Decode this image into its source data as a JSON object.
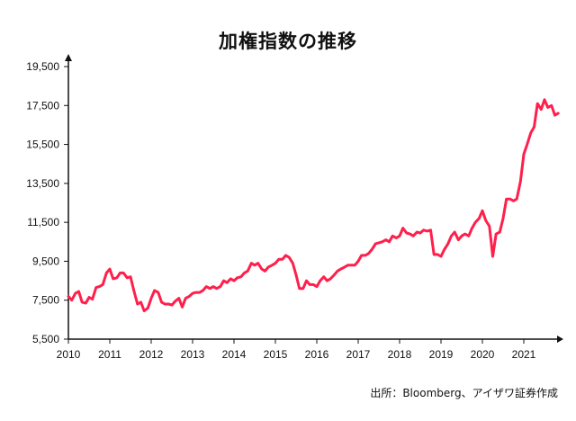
{
  "chart_data": {
    "type": "line",
    "title": "加権指数の推移",
    "source": "出所：Bloomberg、アイザワ証券作成",
    "xlabel": "",
    "ylabel": "",
    "x_ticks": [
      "2010",
      "2011",
      "2012",
      "2013",
      "2014",
      "2015",
      "2016",
      "2017",
      "2018",
      "2019",
      "2020",
      "2021"
    ],
    "y_ticks": [
      "5,500",
      "7,500",
      "9,500",
      "11,500",
      "13,500",
      "15,500",
      "17,500",
      "19,500"
    ],
    "ylim": [
      5500,
      19500
    ],
    "xlim": [
      2010.0,
      2021.83
    ],
    "grid": false,
    "colors": {
      "line": "#ff1f4b",
      "axis": "#111111"
    },
    "series": [
      {
        "name": "",
        "points": [
          [
            2010.0,
            7700
          ],
          [
            2010.08,
            7500
          ],
          [
            2010.17,
            7850
          ],
          [
            2010.25,
            7950
          ],
          [
            2010.33,
            7400
          ],
          [
            2010.42,
            7350
          ],
          [
            2010.5,
            7650
          ],
          [
            2010.58,
            7550
          ],
          [
            2010.67,
            8150
          ],
          [
            2010.75,
            8200
          ],
          [
            2010.83,
            8300
          ],
          [
            2010.92,
            8900
          ],
          [
            2011.0,
            9100
          ],
          [
            2011.08,
            8600
          ],
          [
            2011.17,
            8650
          ],
          [
            2011.25,
            8900
          ],
          [
            2011.33,
            8900
          ],
          [
            2011.42,
            8650
          ],
          [
            2011.5,
            8700
          ],
          [
            2011.58,
            8000
          ],
          [
            2011.67,
            7300
          ],
          [
            2011.75,
            7400
          ],
          [
            2011.83,
            6950
          ],
          [
            2011.92,
            7100
          ],
          [
            2012.0,
            7600
          ],
          [
            2012.08,
            8000
          ],
          [
            2012.17,
            7900
          ],
          [
            2012.25,
            7400
          ],
          [
            2012.33,
            7300
          ],
          [
            2012.42,
            7300
          ],
          [
            2012.5,
            7250
          ],
          [
            2012.58,
            7450
          ],
          [
            2012.67,
            7600
          ],
          [
            2012.75,
            7150
          ],
          [
            2012.83,
            7600
          ],
          [
            2012.92,
            7700
          ],
          [
            2013.0,
            7850
          ],
          [
            2013.08,
            7900
          ],
          [
            2013.17,
            7900
          ],
          [
            2013.25,
            8000
          ],
          [
            2013.33,
            8200
          ],
          [
            2013.42,
            8100
          ],
          [
            2013.5,
            8200
          ],
          [
            2013.58,
            8100
          ],
          [
            2013.67,
            8200
          ],
          [
            2013.75,
            8500
          ],
          [
            2013.83,
            8400
          ],
          [
            2013.92,
            8600
          ],
          [
            2014.0,
            8500
          ],
          [
            2014.08,
            8650
          ],
          [
            2014.17,
            8700
          ],
          [
            2014.25,
            8900
          ],
          [
            2014.33,
            9000
          ],
          [
            2014.42,
            9400
          ],
          [
            2014.5,
            9300
          ],
          [
            2014.58,
            9400
          ],
          [
            2014.67,
            9100
          ],
          [
            2014.75,
            9000
          ],
          [
            2014.83,
            9200
          ],
          [
            2014.92,
            9300
          ],
          [
            2015.0,
            9400
          ],
          [
            2015.08,
            9600
          ],
          [
            2015.17,
            9600
          ],
          [
            2015.25,
            9800
          ],
          [
            2015.33,
            9700
          ],
          [
            2015.42,
            9400
          ],
          [
            2015.5,
            8800
          ],
          [
            2015.58,
            8100
          ],
          [
            2015.67,
            8100
          ],
          [
            2015.75,
            8500
          ],
          [
            2015.83,
            8300
          ],
          [
            2015.92,
            8300
          ],
          [
            2016.0,
            8200
          ],
          [
            2016.08,
            8500
          ],
          [
            2016.17,
            8700
          ],
          [
            2016.25,
            8500
          ],
          [
            2016.33,
            8600
          ],
          [
            2016.42,
            8800
          ],
          [
            2016.5,
            9000
          ],
          [
            2016.58,
            9100
          ],
          [
            2016.67,
            9200
          ],
          [
            2016.75,
            9300
          ],
          [
            2016.83,
            9300
          ],
          [
            2016.92,
            9300
          ],
          [
            2017.0,
            9500
          ],
          [
            2017.08,
            9800
          ],
          [
            2017.17,
            9800
          ],
          [
            2017.25,
            9900
          ],
          [
            2017.33,
            10100
          ],
          [
            2017.42,
            10400
          ],
          [
            2017.5,
            10450
          ],
          [
            2017.58,
            10500
          ],
          [
            2017.67,
            10600
          ],
          [
            2017.75,
            10500
          ],
          [
            2017.83,
            10800
          ],
          [
            2017.92,
            10700
          ],
          [
            2018.0,
            10800
          ],
          [
            2018.08,
            11200
          ],
          [
            2018.17,
            10950
          ],
          [
            2018.25,
            10900
          ],
          [
            2018.33,
            10800
          ],
          [
            2018.42,
            11000
          ],
          [
            2018.5,
            10950
          ],
          [
            2018.58,
            11100
          ],
          [
            2018.67,
            11050
          ],
          [
            2018.75,
            11100
          ],
          [
            2018.83,
            9850
          ],
          [
            2018.92,
            9850
          ],
          [
            2019.0,
            9750
          ],
          [
            2019.08,
            10100
          ],
          [
            2019.17,
            10400
          ],
          [
            2019.25,
            10800
          ],
          [
            2019.33,
            11000
          ],
          [
            2019.42,
            10600
          ],
          [
            2019.5,
            10800
          ],
          [
            2019.58,
            10900
          ],
          [
            2019.67,
            10800
          ],
          [
            2019.75,
            11200
          ],
          [
            2019.83,
            11500
          ],
          [
            2019.92,
            11700
          ],
          [
            2020.0,
            12100
          ],
          [
            2020.08,
            11600
          ],
          [
            2020.17,
            11300
          ],
          [
            2020.25,
            9750
          ],
          [
            2020.33,
            10900
          ],
          [
            2020.42,
            11000
          ],
          [
            2020.5,
            11700
          ],
          [
            2020.58,
            12700
          ],
          [
            2020.67,
            12700
          ],
          [
            2020.75,
            12600
          ],
          [
            2020.83,
            12700
          ],
          [
            2020.92,
            13600
          ],
          [
            2021.0,
            15000
          ],
          [
            2021.08,
            15500
          ],
          [
            2021.17,
            16100
          ],
          [
            2021.25,
            16400
          ],
          [
            2021.33,
            17600
          ],
          [
            2021.42,
            17300
          ],
          [
            2021.5,
            17800
          ],
          [
            2021.58,
            17400
          ],
          [
            2021.67,
            17500
          ],
          [
            2021.75,
            17000
          ],
          [
            2021.83,
            17100
          ]
        ]
      }
    ]
  }
}
